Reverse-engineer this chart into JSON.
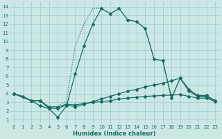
{
  "xlabel": "Humidex (Indice chaleur)",
  "background_color": "#cce8e4",
  "grid_color": "#99cccc",
  "line_color": "#1a6b63",
  "xlim": [
    -0.5,
    23.5
  ],
  "ylim": [
    0.5,
    14.5
  ],
  "xticks": [
    0,
    1,
    2,
    3,
    4,
    5,
    6,
    7,
    8,
    9,
    10,
    11,
    12,
    13,
    14,
    15,
    16,
    17,
    18,
    19,
    20,
    21,
    22,
    23
  ],
  "yticks": [
    1,
    2,
    3,
    4,
    5,
    6,
    7,
    8,
    9,
    10,
    11,
    12,
    13,
    14
  ],
  "series1_x": [
    0,
    1,
    2,
    3,
    4,
    5,
    6,
    7,
    8,
    9,
    10,
    11,
    12,
    13,
    14,
    15,
    16,
    17,
    18,
    19,
    20,
    21,
    22,
    23
  ],
  "series1_y": [
    4.0,
    3.7,
    3.2,
    2.6,
    2.3,
    1.3,
    2.6,
    6.3,
    9.5,
    12.0,
    13.8,
    13.2,
    13.8,
    12.5,
    12.3,
    11.5,
    8.0,
    7.8,
    3.5,
    5.8,
    4.3,
    3.7,
    3.7,
    3.2
  ],
  "series2_x": [
    0,
    2,
    3,
    4,
    5,
    6,
    7,
    8,
    9,
    10,
    11,
    12,
    13,
    14,
    15,
    16,
    17,
    18,
    19,
    20,
    21,
    22,
    23
  ],
  "series2_y": [
    4.0,
    3.2,
    3.2,
    2.3,
    2.3,
    2.7,
    2.5,
    2.8,
    3.1,
    3.4,
    3.7,
    4.0,
    4.3,
    4.5,
    4.8,
    5.0,
    5.2,
    5.5,
    5.8,
    4.5,
    3.8,
    3.8,
    3.2
  ],
  "series3_x": [
    0,
    2,
    3,
    4,
    5,
    6,
    7,
    8,
    9,
    10,
    11,
    12,
    13,
    14,
    15,
    16,
    17,
    18,
    19,
    20,
    21,
    22,
    23
  ],
  "series3_y": [
    4.0,
    3.2,
    3.2,
    2.5,
    2.5,
    2.8,
    2.7,
    2.9,
    3.0,
    3.1,
    3.2,
    3.4,
    3.5,
    3.6,
    3.7,
    3.75,
    3.8,
    3.85,
    3.9,
    3.7,
    3.5,
    3.5,
    3.1
  ],
  "series4_x": [
    0,
    1,
    2,
    3,
    4,
    5,
    6,
    7,
    8,
    9,
    10,
    11,
    12,
    13,
    14,
    15,
    16,
    17,
    18,
    19,
    20,
    21,
    22,
    23
  ],
  "series4_y": [
    4.0,
    3.7,
    3.2,
    3.2,
    2.4,
    2.5,
    3.2,
    9.5,
    12.0,
    13.8,
    13.8,
    13.2,
    13.8,
    12.5,
    12.3,
    11.5,
    8.0,
    7.8,
    3.5,
    5.8,
    4.3,
    3.7,
    3.7,
    3.2
  ]
}
